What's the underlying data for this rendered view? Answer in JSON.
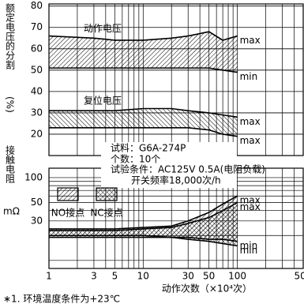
{
  "chart_data": {
    "type": "band",
    "xlog": true,
    "xlim": [
      1,
      500
    ],
    "xticks": [
      1,
      3,
      5,
      10,
      30,
      50,
      100,
      500
    ],
    "xgrid": [
      1,
      2,
      3,
      4,
      5,
      6,
      7,
      8,
      9,
      10,
      20,
      30,
      40,
      50,
      60,
      70,
      80,
      90,
      100,
      200,
      300,
      400,
      500
    ],
    "ylim": [
      10,
      81
    ],
    "yticks": [
      20,
      30,
      40,
      50,
      60,
      70,
      80
    ],
    "y2log": true,
    "y2lim": [
      8,
      130
    ],
    "y2ticks": [
      30,
      50,
      100
    ],
    "y2grid": [
      10,
      20,
      30,
      40,
      50,
      60,
      70,
      80,
      90,
      100
    ],
    "y_label": "额定电压的分割",
    "y_unit": "(%)",
    "y2_label": "接触电阻",
    "y2_unit": "mΩ",
    "x_label": "动作次数（×10⁴次）",
    "x": [
      1,
      3,
      5,
      10,
      20,
      30,
      50,
      70,
      100
    ],
    "series": [
      {
        "name": "动作电压",
        "axis": "y",
        "pattern": "diag-a",
        "color": "#000000",
        "max": [
          66,
          65,
          64,
          64,
          65,
          66,
          68,
          64,
          66
        ],
        "min": [
          51,
          51,
          51,
          51,
          51,
          51,
          51,
          50,
          49
        ],
        "end_labels": [
          "max",
          "min"
        ]
      },
      {
        "name": "复位电压",
        "axis": "y",
        "pattern": "diag-b",
        "color": "#000000",
        "max": [
          31,
          31,
          31,
          32,
          32,
          31,
          30,
          29,
          28
        ],
        "min": [
          23,
          23,
          23,
          23,
          23,
          23,
          22,
          20,
          19
        ],
        "end_labels": [
          "max",
          "max"
        ]
      },
      {
        "name": "NO接点",
        "axis": "y2",
        "pattern": "diag-a",
        "color": "#000000",
        "max": [
          24,
          24,
          24,
          25,
          26,
          30,
          38,
          48,
          60
        ],
        "min": [
          20,
          20,
          20,
          20,
          19,
          19,
          18,
          18,
          17
        ],
        "end_labels": [
          "max",
          "min"
        ]
      },
      {
        "name": "NC接点",
        "axis": "y2",
        "pattern": "cross",
        "color": "#000000",
        "max": [
          23,
          23,
          23,
          24,
          25,
          28,
          33,
          40,
          50
        ],
        "min": [
          19,
          19,
          19,
          19,
          19,
          18,
          17,
          16,
          15
        ],
        "end_labels": [
          "max",
          "min"
        ]
      }
    ],
    "annotations": [
      "试料：G6A-274P",
      "个数：10个",
      "试验条件：AC125V 0.5A(电阻负载)",
      "开关频率18,000次/h"
    ],
    "footnote": "∗1. 环境温度条件为+23℃"
  }
}
